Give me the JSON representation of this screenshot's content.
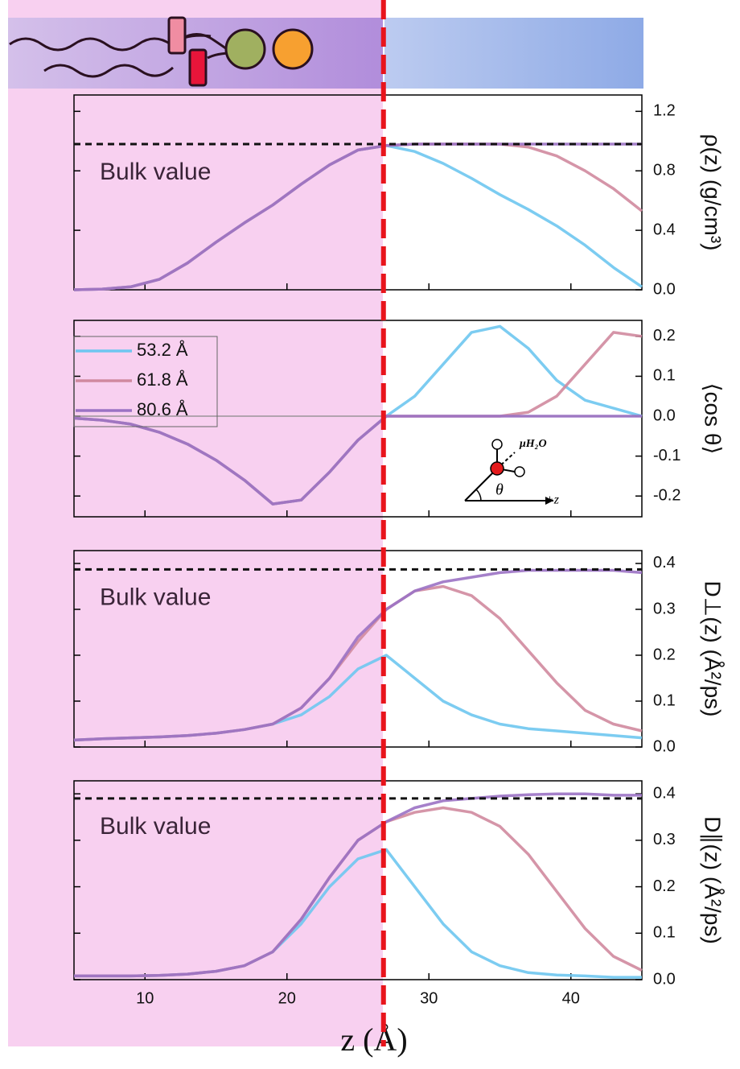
{
  "interface": {
    "z": 26.8
  },
  "chart_data": [
    {
      "type": "line",
      "ylabel": "ρ(z) (g/cm³)",
      "annotation": "Bulk value",
      "bulk_value": 0.98,
      "xlim": [
        5,
        45
      ],
      "ylim": [
        0,
        1.31
      ],
      "yticks": [
        {
          "value": 0,
          "label": "0.0"
        },
        {
          "value": 0.4,
          "label": "0.4"
        },
        {
          "value": 0.8,
          "label": "0.8"
        },
        {
          "value": 1.2,
          "label": "1.2"
        }
      ],
      "x": [
        5,
        7,
        9,
        11,
        13,
        15,
        17,
        19,
        21,
        23,
        25,
        27,
        29,
        31,
        33,
        35,
        37,
        39,
        41,
        43,
        45
      ],
      "series": [
        {
          "color": "#6ec6f0",
          "values": [
            0,
            0.005,
            0.02,
            0.07,
            0.18,
            0.32,
            0.45,
            0.57,
            0.71,
            0.84,
            0.94,
            0.97,
            0.93,
            0.85,
            0.75,
            0.64,
            0.54,
            0.43,
            0.3,
            0.15,
            0.02
          ]
        },
        {
          "color": "#d0899f",
          "values": [
            0,
            0.005,
            0.02,
            0.07,
            0.18,
            0.32,
            0.45,
            0.57,
            0.71,
            0.84,
            0.94,
            0.97,
            0.98,
            0.98,
            0.98,
            0.98,
            0.96,
            0.9,
            0.8,
            0.68,
            0.53
          ]
        },
        {
          "color": "#9b72c4",
          "values": [
            0,
            0.005,
            0.02,
            0.07,
            0.18,
            0.32,
            0.45,
            0.57,
            0.71,
            0.84,
            0.94,
            0.97,
            0.98,
            0.98,
            0.98,
            0.98,
            0.98,
            0.98,
            0.98,
            0.98,
            0.98
          ]
        }
      ]
    },
    {
      "type": "line",
      "ylabel": "⟨cos θ⟩",
      "legend": "upper left",
      "inset": {
        "dipole": "μH₂O",
        "angle": "θ",
        "axis": "+z"
      },
      "xlim": [
        5,
        45
      ],
      "ylim": [
        -0.252,
        0.24
      ],
      "yticks": [
        -0.2,
        -0.1,
        {
          "value": 0,
          "label": "0.0"
        },
        0.1,
        0.2
      ],
      "x": [
        5,
        7,
        9,
        11,
        13,
        15,
        17,
        19,
        21,
        23,
        25,
        27,
        29,
        31,
        33,
        35,
        37,
        39,
        41,
        43,
        45
      ],
      "series": [
        {
          "name": "53.2 Å",
          "color": "#6ec6f0",
          "values": [
            -0.005,
            -0.01,
            -0.02,
            -0.04,
            -0.07,
            -0.11,
            -0.16,
            -0.22,
            -0.21,
            -0.14,
            -0.06,
            0,
            0.05,
            0.13,
            0.21,
            0.225,
            0.17,
            0.09,
            0.04,
            0.02,
            0
          ]
        },
        {
          "name": "61.8 Å",
          "color": "#d0899f",
          "values": [
            -0.005,
            -0.01,
            -0.02,
            -0.04,
            -0.07,
            -0.11,
            -0.16,
            -0.22,
            -0.21,
            -0.14,
            -0.06,
            0,
            0,
            0,
            0,
            0,
            0.01,
            0.05,
            0.13,
            0.21,
            0.2
          ]
        },
        {
          "name": "80.6 Å",
          "color": "#9b72c4",
          "values": [
            -0.005,
            -0.01,
            -0.02,
            -0.04,
            -0.07,
            -0.11,
            -0.16,
            -0.22,
            -0.21,
            -0.14,
            -0.06,
            0,
            0,
            0,
            0,
            0,
            0,
            0,
            0,
            0,
            0
          ]
        }
      ]
    },
    {
      "type": "line",
      "ylabel": "D⊥(z) (Å²/ps)",
      "annotation": "Bulk value",
      "bulk_value": 0.387,
      "xlim": [
        5,
        45
      ],
      "ylim": [
        0,
        0.428
      ],
      "yticks": [
        {
          "value": 0,
          "label": "0.0"
        },
        0.1,
        0.2,
        0.3,
        0.4
      ],
      "x": [
        5,
        7,
        9,
        11,
        13,
        15,
        17,
        19,
        21,
        23,
        25,
        27,
        29,
        31,
        33,
        35,
        37,
        39,
        41,
        43,
        45
      ],
      "series": [
        {
          "color": "#6ec6f0",
          "values": [
            0.015,
            0.018,
            0.02,
            0.022,
            0.025,
            0.03,
            0.038,
            0.05,
            0.07,
            0.11,
            0.17,
            0.2,
            0.15,
            0.1,
            0.07,
            0.05,
            0.04,
            0.035,
            0.03,
            0.025,
            0.02
          ]
        },
        {
          "color": "#d0899f",
          "values": [
            0.015,
            0.018,
            0.02,
            0.022,
            0.025,
            0.03,
            0.038,
            0.05,
            0.085,
            0.15,
            0.23,
            0.3,
            0.34,
            0.35,
            0.33,
            0.28,
            0.21,
            0.14,
            0.08,
            0.05,
            0.035
          ]
        },
        {
          "color": "#9b72c4",
          "values": [
            0.015,
            0.018,
            0.02,
            0.022,
            0.025,
            0.03,
            0.038,
            0.05,
            0.085,
            0.15,
            0.24,
            0.3,
            0.34,
            0.36,
            0.37,
            0.38,
            0.385,
            0.385,
            0.385,
            0.385,
            0.38
          ]
        }
      ]
    },
    {
      "type": "line",
      "ylabel": "D∥(z) (Å²/ps)",
      "xlabel": "z (Å)",
      "annotation": "Bulk value",
      "bulk_value": 0.39,
      "xlim": [
        5,
        45
      ],
      "ylim": [
        0,
        0.428
      ],
      "xticks": [
        10,
        20,
        30,
        40
      ],
      "yticks": [
        {
          "value": 0,
          "label": "0.0"
        },
        0.1,
        0.2,
        0.3,
        0.4
      ],
      "x": [
        5,
        7,
        9,
        11,
        13,
        15,
        17,
        19,
        21,
        23,
        25,
        27,
        29,
        31,
        33,
        35,
        37,
        39,
        41,
        43,
        45
      ],
      "series": [
        {
          "color": "#6ec6f0",
          "values": [
            0.008,
            0.008,
            0.008,
            0.009,
            0.012,
            0.018,
            0.03,
            0.06,
            0.12,
            0.2,
            0.26,
            0.28,
            0.2,
            0.12,
            0.06,
            0.03,
            0.015,
            0.01,
            0.008,
            0.005,
            0.005
          ]
        },
        {
          "color": "#d0899f",
          "values": [
            0.008,
            0.008,
            0.008,
            0.009,
            0.012,
            0.018,
            0.03,
            0.06,
            0.13,
            0.22,
            0.3,
            0.34,
            0.36,
            0.37,
            0.36,
            0.33,
            0.27,
            0.19,
            0.11,
            0.05,
            0.02
          ]
        },
        {
          "color": "#9b72c4",
          "values": [
            0.008,
            0.008,
            0.008,
            0.009,
            0.012,
            0.018,
            0.03,
            0.06,
            0.13,
            0.22,
            0.3,
            0.34,
            0.37,
            0.385,
            0.39,
            0.395,
            0.398,
            0.4,
            0.4,
            0.397,
            0.397
          ]
        }
      ]
    }
  ]
}
